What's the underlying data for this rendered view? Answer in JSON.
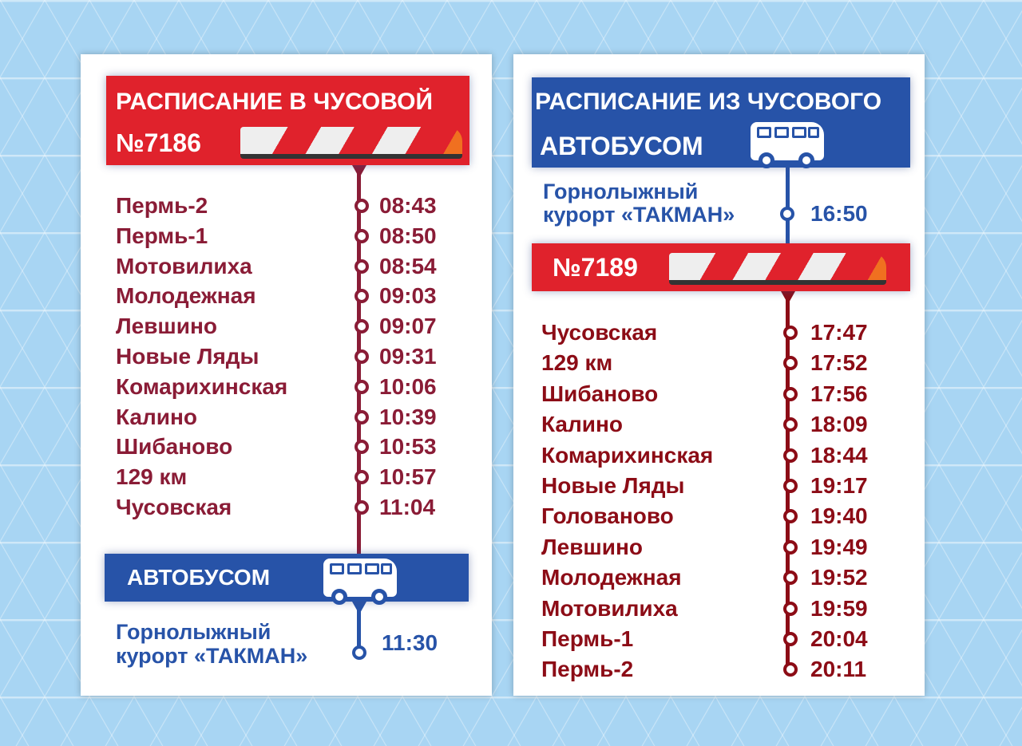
{
  "left": {
    "title": "РАСПИСАНИЕ В ЧУСОВОЙ",
    "train_number": "№7186",
    "stops": [
      {
        "name": "Пермь-2",
        "time": "08:43"
      },
      {
        "name": "Пермь-1",
        "time": "08:50"
      },
      {
        "name": "Мотовилиха",
        "time": "08:54"
      },
      {
        "name": "Молодежная",
        "time": "09:03"
      },
      {
        "name": "Левшино",
        "time": "09:07"
      },
      {
        "name": "Новые Ляды",
        "time": "09:31"
      },
      {
        "name": "Комарихинская",
        "time": "10:06"
      },
      {
        "name": "Калино",
        "time": "10:39"
      },
      {
        "name": "Шибаново",
        "time": "10:53"
      },
      {
        "name": "129 км",
        "time": "10:57"
      },
      {
        "name": "Чусовская",
        "time": "11:04"
      }
    ],
    "bus_label": "АВТОБУСОМ",
    "destination_line1": "Горнолыжный",
    "destination_line2": "курорт «ТАКМАН»",
    "destination_time": "11:30"
  },
  "right": {
    "title": "РАСПИСАНИЕ ИЗ ЧУСОВОГО",
    "bus_label": "АВТОБУСОМ",
    "origin_line1": "Горнолыжный",
    "origin_line2": "курорт «ТАКМАН»",
    "origin_time": "16:50",
    "train_number": "№7189",
    "stops": [
      {
        "name": "Чусовская",
        "time": "17:47"
      },
      {
        "name": "129 км",
        "time": "17:52"
      },
      {
        "name": "Шибаново",
        "time": "17:56"
      },
      {
        "name": "Калино",
        "time": "18:09"
      },
      {
        "name": "Комарихинская",
        "time": "18:44"
      },
      {
        "name": "Новые Ляды",
        "time": "19:17"
      },
      {
        "name": "Голованово",
        "time": "19:40"
      },
      {
        "name": "Левшино",
        "time": "19:49"
      },
      {
        "name": "Молодежная",
        "time": "19:52"
      },
      {
        "name": "Мотовилиха",
        "time": "19:59"
      },
      {
        "name": "Пермь-1",
        "time": "20:04"
      },
      {
        "name": "Пермь-2",
        "time": "20:11"
      }
    ]
  },
  "colors": {
    "red": "#e0222c",
    "blue": "#2753a8",
    "left_text": "#8a1c36",
    "right_text": "#8c0c16",
    "background": "#a8d5f3"
  }
}
